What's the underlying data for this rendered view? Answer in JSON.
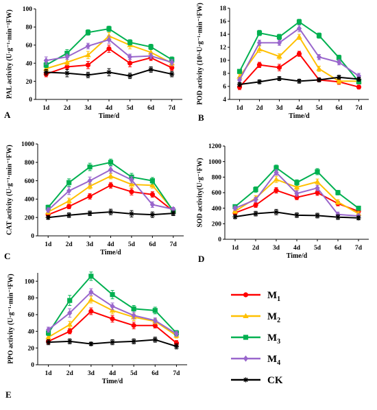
{
  "legend": [
    {
      "key": "M1",
      "name": "M",
      "sub": "1",
      "color": "#ff0000",
      "marker": "circle"
    },
    {
      "key": "M2",
      "name": "M",
      "sub": "2",
      "color": "#ffc000",
      "marker": "triangle"
    },
    {
      "key": "M3",
      "name": "M",
      "sub": "3",
      "color": "#00b050",
      "marker": "square"
    },
    {
      "key": "M4",
      "name": "M",
      "sub": "4",
      "color": "#9966cc",
      "marker": "diamond"
    },
    {
      "key": "CK",
      "name": "CK",
      "sub": "",
      "color": "#000000",
      "marker": "star"
    }
  ],
  "chart_data": [
    {
      "type": "line",
      "panel_label": "A",
      "ylabel": "PAL activity (U·g⁻¹·min⁻¹FW)",
      "xlabel": "Time/d",
      "categories": [
        "1d",
        "2d",
        "3d",
        "4d",
        "5d",
        "6d",
        "7d"
      ],
      "ylim": [
        0,
        100
      ],
      "yticks": [
        0,
        20,
        40,
        60,
        80,
        100
      ],
      "series": [
        {
          "key": "M1",
          "values": [
            28,
            36,
            38,
            56,
            40,
            46,
            35
          ],
          "errors": [
            3,
            3,
            4,
            4,
            4,
            3,
            3
          ]
        },
        {
          "key": "M2",
          "values": [
            34,
            41,
            49,
            70,
            60,
            52,
            40
          ],
          "errors": [
            3,
            3,
            4,
            4,
            4,
            3,
            3
          ]
        },
        {
          "key": "M3",
          "values": [
            38,
            51,
            74,
            78,
            63,
            58,
            44
          ],
          "errors": [
            3,
            4,
            3,
            3,
            3,
            3,
            3
          ]
        },
        {
          "key": "M4",
          "values": [
            43,
            47,
            59,
            66,
            47,
            48,
            41
          ],
          "errors": [
            4,
            3,
            3,
            4,
            3,
            3,
            3
          ]
        },
        {
          "key": "CK",
          "values": [
            30,
            29,
            27,
            30,
            26,
            33,
            28
          ],
          "errors": [
            3,
            4,
            3,
            4,
            3,
            3,
            3
          ]
        }
      ]
    },
    {
      "type": "line",
      "panel_label": "B",
      "ylabel": "POD activity (10³·U·g⁻¹·min⁻¹FW)",
      "xlabel": "Time/d",
      "categories": [
        "1d",
        "2d",
        "3d",
        "4d",
        "5d",
        "6d",
        "7d"
      ],
      "ylim": [
        4,
        18
      ],
      "yticks": [
        4,
        6,
        8,
        10,
        12,
        14,
        16,
        18
      ],
      "series": [
        {
          "key": "M1",
          "values": [
            5.9,
            9.3,
            8.9,
            11.0,
            7.0,
            6.7,
            5.9
          ],
          "errors": [
            0.4,
            0.4,
            0.5,
            0.4,
            0.3,
            0.4,
            0.3
          ]
        },
        {
          "key": "M2",
          "values": [
            7.5,
            11.7,
            10.6,
            13.6,
            8.7,
            6.8,
            6.8
          ],
          "errors": [
            0.4,
            0.5,
            0.4,
            0.4,
            0.4,
            0.4,
            0.3
          ]
        },
        {
          "key": "M3",
          "values": [
            8.3,
            14.2,
            13.6,
            15.9,
            13.8,
            10.4,
            6.7
          ],
          "errors": [
            0.3,
            0.4,
            0.4,
            0.4,
            0.4,
            0.4,
            0.3
          ]
        },
        {
          "key": "M4",
          "values": [
            7.0,
            12.7,
            12.7,
            14.9,
            10.5,
            9.7,
            7.6
          ],
          "errors": [
            0.4,
            0.4,
            0.4,
            0.5,
            0.4,
            0.4,
            0.4
          ]
        },
        {
          "key": "CK",
          "values": [
            6.3,
            6.7,
            7.2,
            6.8,
            7.0,
            7.4,
            7.1
          ],
          "errors": [
            0.3,
            0.3,
            0.3,
            0.3,
            0.3,
            0.3,
            0.3
          ]
        }
      ]
    },
    {
      "type": "line",
      "panel_label": "C",
      "ylabel": "CAT activity (U·g⁻¹·min⁻¹FW)",
      "xlabel": "Time/d",
      "categories": [
        "1d",
        "2d",
        "3d",
        "4d",
        "5d",
        "6d",
        "7d"
      ],
      "ylim": [
        0,
        1000
      ],
      "yticks": [
        0,
        200,
        400,
        600,
        800,
        1000
      ],
      "series": [
        {
          "key": "M1",
          "values": [
            230,
            320,
            430,
            550,
            480,
            450,
            270
          ],
          "errors": [
            20,
            25,
            30,
            30,
            35,
            30,
            20
          ]
        },
        {
          "key": "M2",
          "values": [
            260,
            380,
            540,
            650,
            560,
            550,
            280
          ],
          "errors": [
            25,
            30,
            30,
            30,
            35,
            30,
            20
          ]
        },
        {
          "key": "M3",
          "values": [
            310,
            580,
            750,
            800,
            640,
            600,
            270
          ],
          "errors": [
            25,
            40,
            40,
            35,
            40,
            35,
            20
          ]
        },
        {
          "key": "M4",
          "values": [
            280,
            490,
            600,
            720,
            610,
            340,
            290
          ],
          "errors": [
            25,
            40,
            40,
            35,
            35,
            30,
            20
          ]
        },
        {
          "key": "CK",
          "values": [
            200,
            225,
            245,
            260,
            240,
            230,
            245
          ],
          "errors": [
            20,
            25,
            25,
            30,
            35,
            30,
            25
          ]
        }
      ]
    },
    {
      "type": "line",
      "panel_label": "D",
      "ylabel": "SOD activity(U·g⁻¹FW)",
      "xlabel": "Time/d",
      "categories": [
        "1d",
        "2d",
        "3d",
        "4d",
        "5d",
        "6d",
        "7d"
      ],
      "ylim": [
        0,
        1200
      ],
      "yticks": [
        0,
        200,
        400,
        600,
        800,
        1000,
        1200
      ],
      "series": [
        {
          "key": "M1",
          "values": [
            340,
            440,
            630,
            540,
            600,
            460,
            360
          ],
          "errors": [
            25,
            30,
            35,
            30,
            35,
            30,
            25
          ]
        },
        {
          "key": "M2",
          "values": [
            360,
            530,
            770,
            670,
            740,
            480,
            330
          ],
          "errors": [
            25,
            30,
            40,
            35,
            35,
            30,
            25
          ]
        },
        {
          "key": "M3",
          "values": [
            420,
            640,
            920,
            730,
            870,
            600,
            400
          ],
          "errors": [
            25,
            35,
            35,
            35,
            40,
            30,
            25
          ]
        },
        {
          "key": "M4",
          "values": [
            400,
            510,
            860,
            590,
            660,
            320,
            300
          ],
          "errors": [
            25,
            30,
            35,
            35,
            35,
            30,
            25
          ]
        },
        {
          "key": "CK",
          "values": [
            290,
            330,
            350,
            310,
            305,
            285,
            275
          ],
          "errors": [
            25,
            30,
            35,
            30,
            30,
            30,
            25
          ]
        }
      ]
    },
    {
      "type": "line",
      "panel_label": "E",
      "ylabel": "PPO activity (U·g⁻¹·min⁻¹FW)",
      "xlabel": "Time/d",
      "categories": [
        "1d",
        "2d",
        "3d",
        "4d",
        "5d",
        "6d",
        "7d"
      ],
      "ylim": [
        0,
        110
      ],
      "yticks": [
        0,
        20,
        40,
        60,
        80,
        100
      ],
      "series": [
        {
          "key": "M1",
          "values": [
            28,
            40,
            64,
            55,
            47,
            47,
            26
          ],
          "errors": [
            3,
            3,
            4,
            4,
            4,
            3,
            3
          ]
        },
        {
          "key": "M2",
          "values": [
            33,
            48,
            78,
            65,
            57,
            52,
            35
          ],
          "errors": [
            3,
            4,
            4,
            4,
            4,
            3,
            3
          ]
        },
        {
          "key": "M3",
          "values": [
            38,
            77,
            106,
            84,
            67,
            65,
            38
          ],
          "errors": [
            3,
            6,
            5,
            5,
            4,
            4,
            3
          ]
        },
        {
          "key": "M4",
          "values": [
            42,
            62,
            87,
            70,
            59,
            53,
            37
          ],
          "errors": [
            3,
            5,
            4,
            4,
            4,
            3,
            3
          ]
        },
        {
          "key": "CK",
          "values": [
            27,
            28,
            25,
            27,
            28,
            30,
            22
          ],
          "errors": [
            3,
            3,
            2,
            3,
            3,
            3,
            3
          ]
        }
      ]
    }
  ]
}
